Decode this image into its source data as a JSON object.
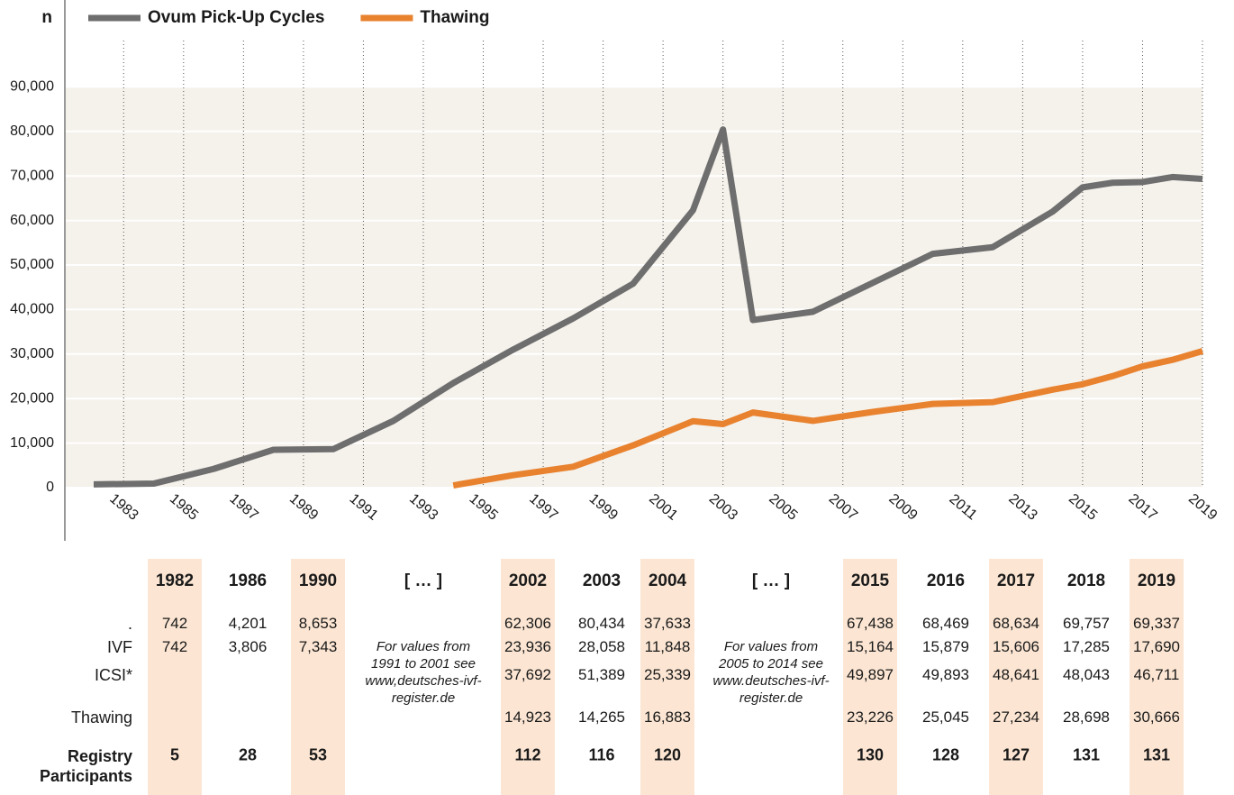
{
  "chart_data": {
    "type": "line",
    "y_label": "n",
    "x": [
      1982,
      1984,
      1986,
      1988,
      1990,
      1992,
      1994,
      1996,
      1998,
      2000,
      2002,
      2003,
      2004,
      2006,
      2008,
      2010,
      2012,
      2014,
      2015,
      2016,
      2017,
      2018,
      2019
    ],
    "series": [
      {
        "name": "Ovum Pick-Up Cycles",
        "color": "#6e6e6e",
        "values": [
          742,
          900,
          4201,
          8500,
          8653,
          15000,
          23500,
          31000,
          38000,
          45800,
          62306,
          80434,
          37633,
          39500,
          46000,
          52500,
          54000,
          62000,
          67438,
          68469,
          68634,
          69757,
          69337
        ]
      },
      {
        "name": "Thawing",
        "color": "#e8822e",
        "values": [
          null,
          null,
          null,
          null,
          null,
          null,
          500,
          2800,
          4700,
          9500,
          14923,
          14265,
          16883,
          15000,
          17000,
          18800,
          19200,
          22000,
          23226,
          25045,
          27234,
          28698,
          30666
        ]
      }
    ],
    "xlim": [
      1982,
      2019
    ],
    "xticks": [
      1983,
      1985,
      1987,
      1989,
      1991,
      1993,
      1995,
      1997,
      1999,
      2001,
      2003,
      2005,
      2007,
      2009,
      2011,
      2013,
      2015,
      2017,
      2019
    ],
    "ylim": [
      0,
      100000
    ],
    "yticks": [
      0,
      {
        "value": 10000,
        "label": "10,000"
      },
      {
        "value": 20000,
        "label": "20,000"
      },
      {
        "value": 30000,
        "label": "30,000"
      },
      {
        "value": 40000,
        "label": "40,000"
      },
      {
        "value": 50000,
        "label": "50,000"
      },
      {
        "value": 60000,
        "label": "60,000"
      },
      {
        "value": 70000,
        "label": "70,000"
      },
      {
        "value": 80000,
        "label": "80,000"
      },
      {
        "value": 90000,
        "label": "90,000"
      }
    ],
    "grid": true,
    "legend": "top"
  },
  "table": {
    "columns": [
      "1982",
      "1986",
      "1990",
      "[ … ]",
      "2002",
      "2003",
      "2004",
      "[ … ]",
      "2015",
      "2016",
      "2017",
      "2018",
      "2019"
    ],
    "shaded": [
      true,
      false,
      true,
      false,
      true,
      false,
      true,
      false,
      true,
      false,
      true,
      false,
      true
    ],
    "rows": [
      {
        "label": ".",
        "cells": [
          "742",
          "4,201",
          "8,653",
          null,
          "62,306",
          "80,434",
          "37,633",
          null,
          "67,438",
          "68,469",
          "68,634",
          "69,757",
          "69,337"
        ]
      },
      {
        "label": "IVF",
        "cells": [
          "742",
          "3,806",
          "7,343",
          null,
          "23,936",
          "28,058",
          "11,848",
          null,
          "15,164",
          "15,879",
          "15,606",
          "17,285",
          "17,690"
        ]
      },
      {
        "label": "ICSI*",
        "cells": [
          null,
          null,
          null,
          null,
          "37,692",
          "51,389",
          "25,339",
          null,
          "49,897",
          "49,893",
          "48,641",
          "48,043",
          "46,711"
        ]
      },
      {
        "label": "Thawing",
        "cells": [
          null,
          null,
          null,
          null,
          "14,923",
          "14,265",
          "16,883",
          null,
          "23,226",
          "25,045",
          "27,234",
          "28,698",
          "30,666"
        ]
      },
      {
        "label": "Registry Participants",
        "cells": [
          "5",
          "28",
          "53",
          null,
          "112",
          "116",
          "120",
          null,
          "130",
          "128",
          "127",
          "131",
          "131"
        ]
      }
    ],
    "notes": [
      "For values from 1991 to 2001 see www,deutsches-ivf-register.de",
      "For values from 2005 to 2014 see www.deutsches-ivf-register.de"
    ]
  }
}
